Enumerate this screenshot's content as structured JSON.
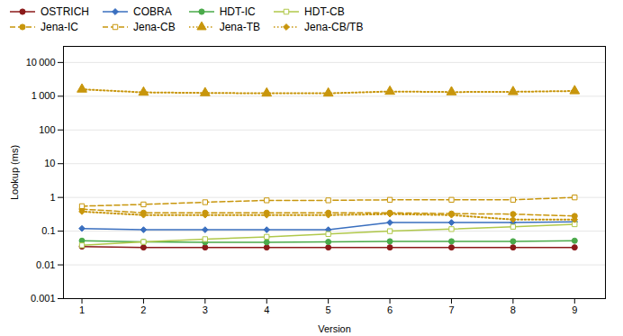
{
  "chart_data": {
    "type": "line",
    "x": [
      1,
      2,
      3,
      4,
      5,
      6,
      7,
      8,
      9
    ],
    "xlabel": "Version",
    "ylabel": "Lookup (ms)",
    "xlim": [
      0.7,
      9.5
    ],
    "xticks": [
      1,
      2,
      3,
      4,
      5,
      6,
      7,
      8,
      9
    ],
    "ylim": [
      0.001,
      30000
    ],
    "yticks": [
      0.001,
      0.01,
      0.1,
      1,
      10,
      100,
      {
        "value": 1000,
        "label": "1 000"
      },
      {
        "value": 10000,
        "label": "10 000"
      }
    ],
    "log": "y",
    "grid": true,
    "legend": "upper left",
    "series": [
      {
        "name": "OSTRICH",
        "color": "#8b1a1a",
        "marker": "circle",
        "line_style": "solid",
        "values": [
          0.035,
          0.033,
          0.033,
          0.033,
          0.033,
          0.033,
          0.033,
          0.033,
          0.033
        ]
      },
      {
        "name": "COBRA",
        "color": "#3a6fbf",
        "marker": "diamond",
        "line_style": "solid",
        "values": [
          0.12,
          0.11,
          0.11,
          0.11,
          0.11,
          0.18,
          0.18,
          0.18,
          0.19
        ]
      },
      {
        "name": "HDT-IC",
        "color": "#4aaa4a",
        "marker": "circle",
        "line_style": "solid",
        "values": [
          0.052,
          0.048,
          0.047,
          0.047,
          0.048,
          0.05,
          0.05,
          0.05,
          0.052
        ]
      },
      {
        "name": "HDT-CB",
        "color": "#b0c84a",
        "marker": "square-open",
        "line_style": "solid",
        "values": [
          0.038,
          0.048,
          0.058,
          0.068,
          0.082,
          0.1,
          0.115,
          0.135,
          0.16
        ]
      },
      {
        "name": "Jena-IC",
        "color": "#c8960c",
        "marker": "circle",
        "line_style": "dashed",
        "values": [
          0.45,
          0.35,
          0.35,
          0.35,
          0.35,
          0.35,
          0.33,
          0.32,
          0.28
        ]
      },
      {
        "name": "Jena-CB",
        "color": "#c8960c",
        "marker": "square-open",
        "line_style": "dashed",
        "values": [
          0.55,
          0.62,
          0.72,
          0.82,
          0.82,
          0.85,
          0.85,
          0.85,
          1.0
        ]
      },
      {
        "name": "Jena-TB",
        "color": "#c8960c",
        "marker": "triangle",
        "line_style": "dotted",
        "values": [
          1600,
          1300,
          1250,
          1220,
          1220,
          1380,
          1330,
          1350,
          1430
        ]
      },
      {
        "name": "Jena-CB/TB",
        "color": "#c8960c",
        "marker": "diamond",
        "line_style": "dotted",
        "values": [
          0.38,
          0.3,
          0.3,
          0.3,
          0.3,
          0.32,
          0.3,
          0.22,
          0.22
        ]
      }
    ]
  }
}
